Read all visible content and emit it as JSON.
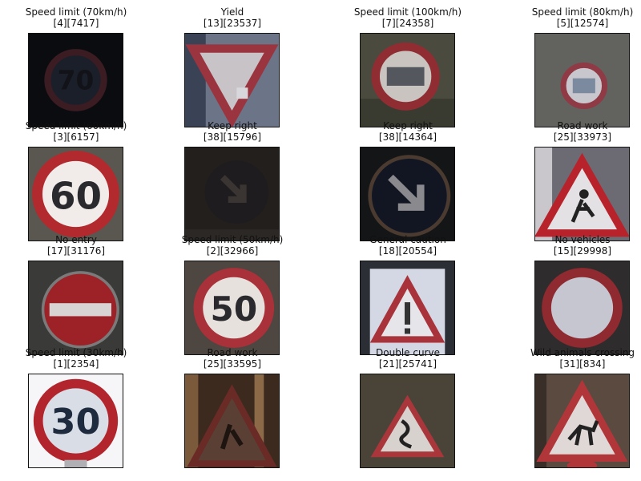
{
  "grid": [
    {
      "title": "Speed limit (70km/h)",
      "ids": "[4][7417]",
      "icon": "speed-limit-70-sign"
    },
    {
      "title": "Yield",
      "ids": "[13][23537]",
      "icon": "yield-sign"
    },
    {
      "title": "Speed limit (100km/h)",
      "ids": "[7][24358]",
      "icon": "speed-limit-100-sign"
    },
    {
      "title": "Speed limit (80km/h)",
      "ids": "[5][12574]",
      "icon": "speed-limit-80-sign"
    },
    {
      "title": "Speed limit (60km/h)",
      "ids": "[3][6157]",
      "icon": "speed-limit-60-sign"
    },
    {
      "title": "Keep right",
      "ids": "[38][15796]",
      "icon": "keep-right-sign"
    },
    {
      "title": "Keep right",
      "ids": "[38][14364]",
      "icon": "keep-right-sign"
    },
    {
      "title": "Road work",
      "ids": "[25][33973]",
      "icon": "road-work-sign"
    },
    {
      "title": "No entry",
      "ids": "[17][31176]",
      "icon": "no-entry-sign"
    },
    {
      "title": "Speed limit (50km/h)",
      "ids": "[2][32966]",
      "icon": "speed-limit-50-sign"
    },
    {
      "title": "General caution",
      "ids": "[18][20554]",
      "icon": "general-caution-sign"
    },
    {
      "title": "No vehicles",
      "ids": "[15][29998]",
      "icon": "no-vehicles-sign"
    },
    {
      "title": "Speed limit (30km/h)",
      "ids": "[1][2354]",
      "icon": "speed-limit-30-sign"
    },
    {
      "title": "Road work",
      "ids": "[25][33595]",
      "icon": "road-work-sign"
    },
    {
      "title": "Double curve",
      "ids": "[21][25741]",
      "icon": "double-curve-sign"
    },
    {
      "title": "Wild animals crossing",
      "ids": "[31][834]",
      "icon": "wild-animals-crossing-sign"
    }
  ],
  "sign_text": {
    "s70": "70",
    "s60": "60",
    "s50": "50",
    "s30": "30"
  }
}
